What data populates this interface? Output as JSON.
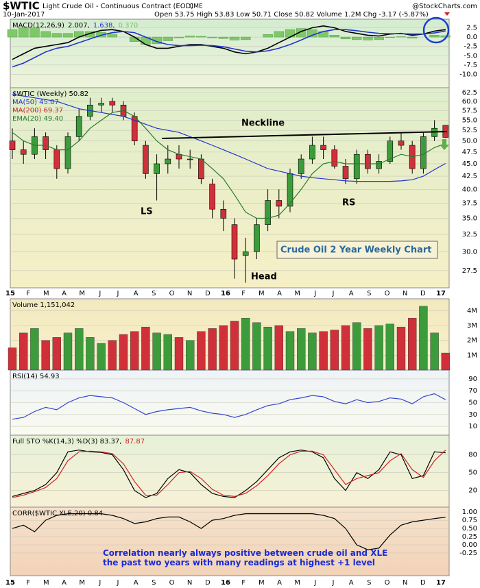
{
  "header": {
    "symbol": "$WTIC",
    "name": "Light Crude Oil - Continuous Contract (EOD)",
    "exchange": "CME",
    "date": "10-Jan-2017",
    "quote": "Open 53.75  High 53.83  Low 50.71  Close 50.82  Volume 1.2M  Chg -3.17 (-5.87%)",
    "source": "@StockCharts.com"
  },
  "x_axis": [
    "15",
    "F",
    "M",
    "A",
    "M",
    "J",
    "J",
    "A",
    "S",
    "O",
    "N",
    "D",
    "16",
    "F",
    "M",
    "A",
    "M",
    "J",
    "J",
    "A",
    "S",
    "O",
    "N",
    "D",
    "17"
  ],
  "annotations": {
    "neckline": "Neckline",
    "ls": "LS",
    "head": "Head",
    "rs": "RS",
    "box": "Crude Oil 2 Year Weekly Chart",
    "note": "Correlation nearly always positive between crude oil and XLE the past two years with many readings at highest +1 level"
  },
  "chart_data": [
    {
      "type": "line",
      "legend": [
        {
          "text": "MACD(12,26,9)",
          "color": "#000"
        },
        {
          "text": "2.007,",
          "color": "#000"
        },
        {
          "text": "1.638,",
          "color": "#2233cc"
        },
        {
          "text": "0.370",
          "color": "#6fbf5f"
        }
      ],
      "ylim": [
        -13.6,
        4.8
      ],
      "yticks": [
        2.5,
        {
          "value": 0,
          "label": "0.0"
        },
        {
          "value": -2.5,
          "label": "-2.5"
        },
        {
          "value": -5,
          "label": "-5.0"
        },
        {
          "value": -7.5,
          "label": "-7.5"
        },
        {
          "value": -10,
          "label": "-10.0"
        }
      ],
      "bars": {
        "color": "#7fc86a",
        "values": [
          2,
          2.5,
          2.5,
          1.5,
          1,
          1,
          1.5,
          1.5,
          1.3,
          0.8,
          0,
          -1.2,
          -2,
          -1.8,
          -1,
          -0.2,
          0.3,
          0.2,
          -0.2,
          -0.4,
          -0.8,
          -0.7,
          0,
          0.7,
          1.5,
          2,
          2.3,
          2,
          1.5,
          0.5,
          -0.5,
          -0.7,
          -0.8,
          -0.7,
          -0.1,
          0.1,
          -0.3,
          0,
          0.5,
          0.37
        ]
      },
      "series": [
        {
          "name": "MACD",
          "color": "#000",
          "values": [
            -6,
            -4.5,
            -3,
            -2.5,
            -2,
            -1.5,
            0,
            1,
            1.8,
            2,
            1.5,
            0,
            -2,
            -3,
            -3,
            -2.5,
            -2,
            -2,
            -2.5,
            -3,
            -4,
            -4.5,
            -4,
            -3,
            -1.5,
            0,
            1.5,
            2.5,
            3,
            2.5,
            1.5,
            1,
            0.5,
            0.3,
            0.8,
            1,
            0.5,
            0.8,
            1.6,
            2.007
          ]
        },
        {
          "name": "Signal",
          "color": "#2233cc",
          "values": [
            -8,
            -7,
            -5.5,
            -4,
            -3,
            -2.5,
            -1.5,
            -0.5,
            0.5,
            1.2,
            1.5,
            1.2,
            0,
            -1.2,
            -2,
            -2.3,
            -2.3,
            -2.2,
            -2.3,
            -2.6,
            -3.2,
            -3.8,
            -4,
            -3.7,
            -3,
            -2,
            -0.8,
            0.5,
            1.5,
            2,
            2,
            1.7,
            1.3,
            1,
            0.9,
            0.9,
            0.8,
            0.8,
            1.1,
            1.638
          ]
        }
      ]
    },
    {
      "type": "candlestick",
      "log": true,
      "legend": [
        {
          "text": "$WTIC (Weekly) 50.82",
          "color": "#000"
        },
        {
          "text": "MA(50) 45.07",
          "color": "#2233cc"
        },
        {
          "text": "MA(200) 69.37",
          "color": "#d02020"
        },
        {
          "text": "EMA(20) 49.40",
          "color": "#2a7a2a"
        }
      ],
      "color_up": "#3c9c3c",
      "color_down": "#d0303a",
      "ylim": [
        25.4,
        63.9
      ],
      "yticks": [
        62.5,
        {
          "value": 60,
          "label": "60.0"
        },
        57.5,
        {
          "value": 55,
          "label": "55.0"
        },
        52.5,
        {
          "value": 50,
          "label": "50.0"
        },
        47.5,
        {
          "value": 45,
          "label": "45.0"
        },
        42.5,
        {
          "value": 40,
          "label": "40.0"
        },
        37.5,
        {
          "value": 35,
          "label": "35.0"
        },
        32.5,
        {
          "value": 30,
          "label": "30.0"
        },
        27.5
      ],
      "open": [
        50,
        48,
        47,
        51,
        48,
        44,
        51,
        56,
        59,
        60,
        59,
        56,
        49,
        43,
        45,
        47,
        46,
        46,
        41,
        36.5,
        34,
        29.5,
        30,
        34,
        38,
        37,
        43,
        46,
        49,
        48,
        44.5,
        42,
        47,
        44,
        45.5,
        50,
        49,
        44,
        51,
        53.75
      ],
      "high": [
        53,
        50,
        53,
        52,
        49,
        52,
        58,
        61,
        61,
        61,
        60,
        57,
        50,
        47,
        49,
        49,
        48,
        47,
        42,
        38,
        35,
        32,
        35,
        40,
        40,
        44,
        47,
        51,
        51,
        49,
        46,
        48,
        48,
        47,
        51,
        52,
        50,
        52,
        55,
        53.83
      ],
      "low": [
        46,
        45,
        46,
        46,
        42,
        43,
        50,
        55,
        57,
        57,
        55,
        49,
        42,
        38,
        43,
        44,
        44,
        41,
        35,
        33,
        26.5,
        26,
        29,
        33,
        35,
        36,
        42,
        45,
        46,
        44,
        41,
        41,
        43,
        43,
        45,
        48,
        43,
        43,
        50,
        50.71
      ],
      "close": [
        48,
        47,
        51,
        48,
        44,
        51,
        56,
        59,
        59.5,
        59,
        56,
        50,
        43,
        45,
        46,
        46,
        46,
        42,
        36.5,
        35,
        29,
        30,
        34,
        38,
        37,
        43,
        46,
        49,
        48,
        44.5,
        42,
        47,
        44,
        45.5,
        50,
        49,
        44,
        51,
        53,
        50.82
      ],
      "series": [
        {
          "name": "MA(50)",
          "color": "#2233cc",
          "values": [
            62,
            61.5,
            61,
            60.5,
            60,
            59,
            58,
            57.5,
            57,
            56.5,
            56,
            55,
            54,
            53,
            52.5,
            52,
            51,
            50,
            49,
            48,
            47,
            46,
            45,
            44,
            43.5,
            43,
            42.5,
            42.2,
            42,
            41.8,
            41.6,
            41.5,
            41.5,
            41.5,
            41.5,
            41.6,
            41.8,
            42.5,
            43.8,
            45.07
          ]
        },
        {
          "name": "EMA(20)",
          "color": "#2a7a2a",
          "values": [
            52,
            50,
            49,
            49,
            48,
            48,
            50,
            53,
            55,
            57,
            57.5,
            56,
            53,
            50,
            48,
            47,
            46.5,
            46,
            44,
            42,
            39,
            36,
            35,
            35,
            35.5,
            37.5,
            40,
            43,
            45,
            45.5,
            45,
            45,
            45,
            45,
            46,
            47,
            46.5,
            47,
            48.5,
            49.4
          ]
        }
      ]
    },
    {
      "type": "bar",
      "legend": [
        {
          "text": "Volume 1,151,042",
          "color": "#000"
        }
      ],
      "ylim": [
        0,
        4.8
      ],
      "yticks": [
        {
          "value": 1,
          "label": "1M"
        },
        {
          "value": 2,
          "label": "2M"
        },
        {
          "value": 3,
          "label": "3M"
        },
        {
          "value": 4,
          "label": "4M"
        }
      ],
      "values": [
        1.5,
        2.5,
        2.8,
        2,
        2.2,
        2.5,
        2.8,
        2.2,
        1.8,
        2,
        2.4,
        2.6,
        2.9,
        2.5,
        2.4,
        2.2,
        2,
        2.6,
        2.8,
        3,
        3.3,
        3.5,
        3.2,
        2.9,
        3,
        2.6,
        2.8,
        2.5,
        2.6,
        2.7,
        3,
        3.2,
        2.8,
        3,
        3.1,
        2.9,
        3.5,
        4.3,
        2.5,
        1.151042
      ]
    },
    {
      "type": "line",
      "legend": [
        {
          "text": "RSI(14) 54.93",
          "color": "#000"
        }
      ],
      "ylim": [
        -5,
        105
      ],
      "yticks": [
        90,
        70,
        50,
        30,
        10
      ],
      "series": [
        {
          "name": "RSI",
          "color": "#3344cc",
          "values": [
            22,
            25,
            35,
            42,
            38,
            50,
            58,
            62,
            60,
            58,
            50,
            40,
            30,
            35,
            38,
            40,
            42,
            36,
            32,
            30,
            25,
            30,
            38,
            45,
            48,
            55,
            58,
            62,
            60,
            52,
            48,
            55,
            50,
            52,
            58,
            56,
            48,
            60,
            65,
            54.93
          ]
        }
      ]
    },
    {
      "type": "line",
      "legend": [
        {
          "text": "Full STO %K(14,3) %D(3) 83.37,",
          "color": "#000"
        },
        {
          "text": "87.87",
          "color": "#d02020"
        }
      ],
      "ylim": [
        -8,
        113
      ],
      "yticks": [
        80,
        50,
        20
      ],
      "series": [
        {
          "name": "%K",
          "color": "#000",
          "values": [
            10,
            15,
            20,
            30,
            50,
            85,
            88,
            85,
            84,
            80,
            55,
            20,
            8,
            15,
            40,
            55,
            50,
            30,
            15,
            10,
            8,
            20,
            35,
            55,
            75,
            85,
            88,
            85,
            75,
            40,
            20,
            50,
            40,
            55,
            85,
            80,
            40,
            45,
            85,
            83.37
          ]
        },
        {
          "name": "%D",
          "color": "#d02020",
          "values": [
            8,
            12,
            18,
            25,
            40,
            70,
            85,
            86,
            85,
            82,
            65,
            35,
            12,
            12,
            30,
            50,
            52,
            40,
            22,
            12,
            10,
            15,
            28,
            45,
            65,
            80,
            86,
            86,
            80,
            55,
            30,
            40,
            45,
            50,
            70,
            82,
            55,
            42,
            70,
            87.87
          ]
        }
      ]
    },
    {
      "type": "line",
      "legend": [
        {
          "text": "CORR($WTIC,XLE,20) 0.84",
          "color": "#000"
        }
      ],
      "ylim": [
        -0.94,
        1.15
      ],
      "yticks": [
        {
          "value": 1,
          "label": "1.00"
        },
        0.75,
        {
          "value": 0.5,
          "label": "0.50"
        },
        0.25,
        {
          "value": 0,
          "label": "0.00"
        },
        -0.25
      ],
      "series": [
        {
          "name": "CORR",
          "color": "#000",
          "values": [
            0.5,
            0.6,
            0.4,
            0.75,
            0.9,
            0.95,
            0.95,
            0.95,
            0.95,
            0.9,
            0.8,
            0.65,
            0.7,
            0.8,
            0.85,
            0.85,
            0.7,
            0.5,
            0.75,
            0.8,
            0.9,
            0.95,
            0.95,
            0.95,
            0.95,
            0.95,
            0.95,
            0.95,
            0.9,
            0.8,
            0.5,
            0,
            -0.15,
            -0.1,
            0.3,
            0.6,
            0.7,
            0.75,
            0.8,
            0.84
          ]
        }
      ]
    }
  ]
}
